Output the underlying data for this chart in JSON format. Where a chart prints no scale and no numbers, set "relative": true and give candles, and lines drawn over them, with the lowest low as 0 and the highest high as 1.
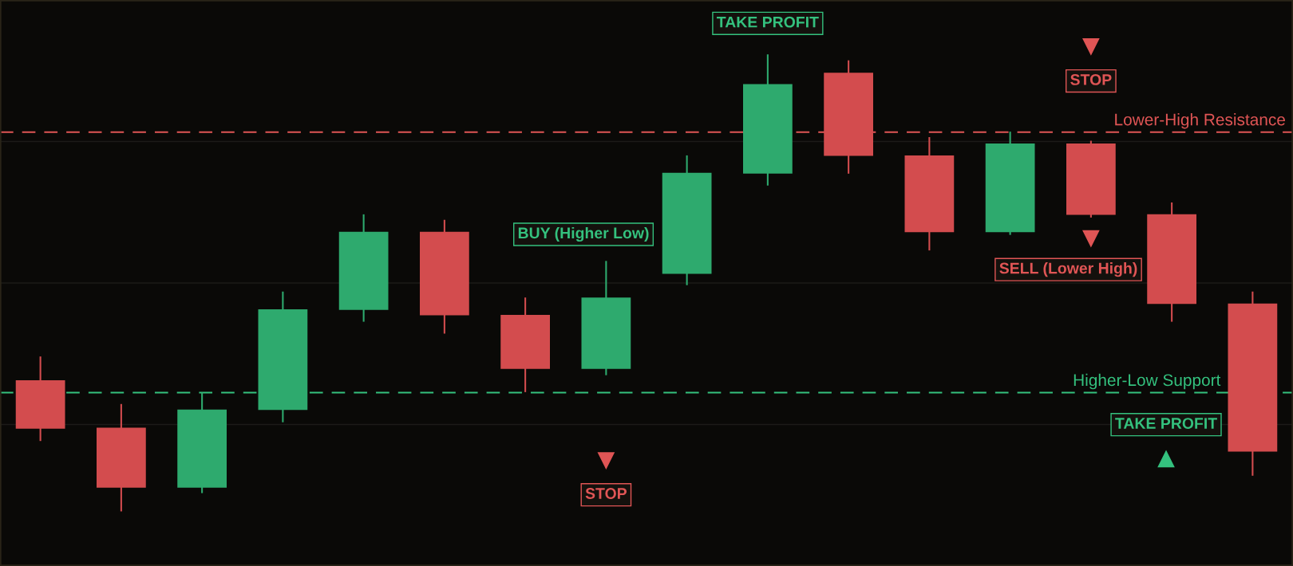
{
  "chart_data": {
    "type": "candlestick",
    "relative": true,
    "categories": [
      null,
      null,
      null,
      null,
      null,
      null,
      null,
      null,
      null,
      null,
      null,
      null,
      null,
      null,
      null,
      null
    ],
    "ohlc": [
      [
        0.287,
        0.339,
        0.154,
        0.181
      ],
      [
        0.183,
        0.235,
        0,
        0.052
      ],
      [
        0.052,
        0.26,
        0.04,
        0.223
      ],
      [
        0.222,
        0.481,
        0.195,
        0.442
      ],
      [
        0.441,
        0.65,
        0.415,
        0.612
      ],
      [
        0.612,
        0.638,
        0.389,
        0.429
      ],
      [
        0.43,
        0.468,
        0.261,
        0.312
      ],
      [
        0.312,
        0.548,
        0.298,
        0.468
      ],
      [
        0.52,
        0.779,
        0.495,
        0.741
      ],
      [
        0.739,
        1,
        0.713,
        0.935
      ],
      [
        0.96,
        0.987,
        0.739,
        0.778
      ],
      [
        0.779,
        0.819,
        0.571,
        0.611
      ],
      [
        0.611,
        0.831,
        0.605,
        0.805
      ],
      [
        0.805,
        0.811,
        0.643,
        0.649
      ],
      [
        0.65,
        0.676,
        0.415,
        0.454
      ],
      [
        0.455,
        0.481,
        0.078,
        0.131
      ]
    ],
    "colors": [
      "#d34c4e",
      "#d34c4e",
      "#2eaa6e",
      "#2eaa6e",
      "#2eaa6e",
      "#d34c4e",
      "#d34c4e",
      "#2eaa6e",
      "#2eaa6e",
      "#2eaa6e",
      "#d34c4e",
      "#d34c4e",
      "#2eaa6e",
      "#d34c4e",
      "#d34c4e",
      "#d34c4e"
    ],
    "ref_lines": [
      {
        "axis": "y",
        "value": 0.83,
        "label": "Lower-High Resistance",
        "color": "#e05555",
        "line_style": "dashed"
      },
      {
        "axis": "y",
        "value": 0.26,
        "label": "Higher-Low Support",
        "color": "#34c17e",
        "line_style": "dashed"
      }
    ],
    "annotations": [
      "TAKE PROFIT",
      "BUY (Higher Low)",
      "STOP",
      "STOP",
      "SELL (Lower High)",
      "TAKE PROFIT"
    ],
    "grid": "y"
  }
}
